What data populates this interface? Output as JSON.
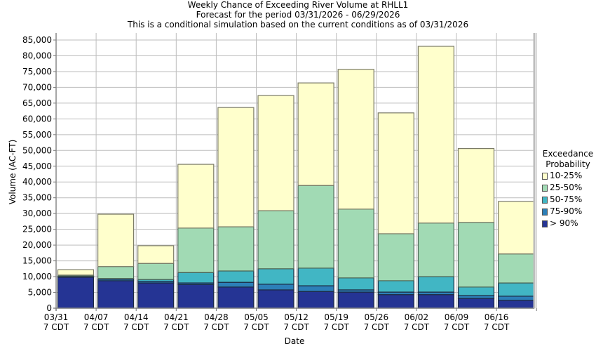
{
  "chart_data": {
    "type": "bar",
    "stacked": true,
    "title": "Weekly Chance of Exceeding River Volume at RHLL1",
    "subtitle_1": "Forecast for the period 03/31/2026 - 06/29/2026",
    "subtitle_2": "This is a conditional simulation based on the current conditions as of 03/31/2026",
    "xlabel": "Date",
    "ylabel": "Volume (AC-FT)",
    "ylim": [
      0,
      87500
    ],
    "yticks": [
      0,
      5000,
      10000,
      15000,
      20000,
      25000,
      30000,
      35000,
      40000,
      45000,
      50000,
      55000,
      60000,
      65000,
      70000,
      75000,
      80000,
      85000
    ],
    "ytick_labels": [
      "0",
      "5,000",
      "10,000",
      "15,000",
      "20,000",
      "25,000",
      "30,000",
      "35,000",
      "40,000",
      "45,000",
      "50,000",
      "55,000",
      "60,000",
      "65,000",
      "70,000",
      "75,000",
      "80,000",
      "85,000"
    ],
    "grid": true,
    "categories": [
      "03/31",
      "04/07",
      "04/14",
      "04/21",
      "04/28",
      "05/05",
      "05/12",
      "05/19",
      "05/26",
      "06/02",
      "06/09",
      "06/16"
    ],
    "category_sublabel": "7 CDT",
    "legend_title_1": "Exceedance",
    "legend_title_2": "Probability",
    "legend_position": "right",
    "series": [
      {
        "name": "> 90%",
        "color": "#253494",
        "bottom": [
          0,
          0,
          0,
          0,
          0,
          0,
          0,
          0,
          0,
          0,
          0,
          0
        ],
        "top": [
          9800,
          8700,
          8000,
          7500,
          6700,
          5800,
          5300,
          5100,
          4300,
          4300,
          3100,
          2500
        ]
      },
      {
        "name": "75-90%",
        "color": "#2c7fb8",
        "bottom": [
          9800,
          8700,
          8000,
          7500,
          6700,
          5800,
          5300,
          5100,
          4300,
          4300,
          3100,
          2500
        ],
        "top": [
          10000,
          9200,
          8500,
          8000,
          8200,
          7600,
          7100,
          5800,
          5100,
          5100,
          4000,
          3800
        ]
      },
      {
        "name": "50-75%",
        "color": "#41b6c4",
        "bottom": [
          10000,
          9200,
          8500,
          8000,
          8200,
          7600,
          7100,
          5800,
          5100,
          5100,
          4000,
          3800
        ],
        "top": [
          10200,
          9400,
          9100,
          11300,
          11800,
          12500,
          12700,
          9600,
          8700,
          10000,
          6700,
          8000
        ]
      },
      {
        "name": "25-50%",
        "color": "#a1dab4",
        "bottom": [
          10200,
          9400,
          9100,
          11300,
          11800,
          12500,
          12700,
          9600,
          8700,
          10000,
          6700,
          8000
        ],
        "top": [
          10500,
          13200,
          14200,
          25400,
          25800,
          30900,
          38900,
          31400,
          23600,
          27000,
          27200,
          17200
        ]
      },
      {
        "name": "10-25%",
        "color": "#ffffcc",
        "bottom": [
          10500,
          13200,
          14200,
          25400,
          25800,
          30900,
          38900,
          31400,
          23600,
          27000,
          27200,
          17200
        ],
        "top": [
          12200,
          29800,
          19800,
          45600,
          63600,
          67400,
          71400,
          75700,
          61900,
          83000,
          50600,
          33800
        ]
      }
    ],
    "legend_order": [
      "10-25%",
      "25-50%",
      "50-75%",
      "75-90%",
      "> 90%"
    ]
  }
}
